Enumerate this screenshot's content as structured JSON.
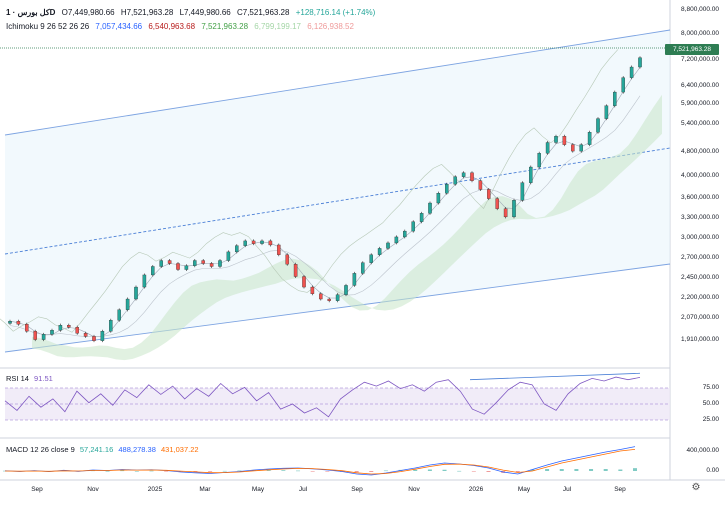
{
  "header": {
    "symbol": "کل بورس · 1D",
    "o": "O7,449,980.66",
    "h": "H7,521,963.28",
    "l": "L7,449,980.66",
    "c": "C7,521,963.28",
    "chg": "+128,716.14 (+1.74%)"
  },
  "ichimoku": {
    "label": "Ichimoku 9 26 52 26 26",
    "v1": "7,057,434.66",
    "v2": "6,540,963.68",
    "v3": "7,521,963.28",
    "v4": "6,799,199.17",
    "v5": "6,126,938.52"
  },
  "rsi": {
    "label": "RSI 14",
    "value": "91.51"
  },
  "macd": {
    "label": "MACD 12 26 close 9",
    "v1": "57,241.16",
    "v2": "488,278.38",
    "v3": "431,037.22"
  },
  "price_badge": "7,521,963.28",
  "colors": {
    "up": "#26a69a",
    "down": "#ef5350",
    "rsi": "#7e57c2",
    "channel": "#4a7fd6",
    "macd": "#2962ff",
    "signal": "#ff6d00"
  },
  "chart_data": {
    "type": "line",
    "title": "کل بورس · 1D",
    "x_ticks": [
      "Sep",
      "Nov",
      "2025",
      "Mar",
      "May",
      "Jul",
      "Sep",
      "Nov",
      "2026",
      "May",
      "Jul",
      "Sep"
    ],
    "price_axis_ticks": [
      "8,800,000.00",
      "8,000,000.00",
      "7,200,000.00",
      "6,400,000.00",
      "5,900,000.00",
      "5,400,000.00",
      "4,800,000.00",
      "4,000,000.00",
      "3,600,000.00",
      "3,300,000.00",
      "3,000,000.00",
      "2,700,000.00",
      "2,450,000.00",
      "2,200,000.00",
      "2,070,000.00",
      "1,910,000.00"
    ],
    "rsi_axis_ticks": [
      "75.00",
      "50.00",
      "25.00"
    ],
    "macd_axis_ticks": [
      "400,000.00",
      "0.00"
    ],
    "series": [
      {
        "name": "کل بورس",
        "values": [
          2180000,
          2150000,
          2080000,
          2000000,
          2050000,
          2090000,
          2140000,
          2120000,
          2060000,
          2030000,
          1990000,
          2080000,
          2190000,
          2300000,
          2420000,
          2560000,
          2710000,
          2820000,
          2900000,
          2860000,
          2780000,
          2830000,
          2900000,
          2860000,
          2820000,
          2900000,
          3020000,
          3110000,
          3180000,
          3140000,
          3180000,
          3120000,
          2980000,
          2850000,
          2690000,
          2560000,
          2480000,
          2420000,
          2400000,
          2470000,
          2580000,
          2730000,
          2870000,
          2980000,
          3070000,
          3150000,
          3240000,
          3330000,
          3480000,
          3620000,
          3800000,
          3980000,
          4150000,
          4300000,
          4380000,
          4220000,
          4050000,
          3880000,
          3700000,
          3560000,
          3850000,
          4180000,
          4500000,
          4800000,
          5050000,
          5200000,
          5000000,
          4850000,
          5000000,
          5300000,
          5650000,
          6000000,
          6400000,
          6850000,
          7200000,
          7521963
        ]
      }
    ],
    "rsi_values": [
      55,
      40,
      62,
      45,
      58,
      38,
      70,
      52,
      66,
      48,
      72,
      60,
      80,
      65,
      78,
      58,
      74,
      62,
      82,
      66,
      76,
      55,
      68,
      42,
      50,
      36,
      44,
      30,
      58,
      72,
      84,
      78,
      86,
      74,
      80,
      70,
      84,
      88,
      70,
      42,
      34,
      52,
      72,
      84,
      80,
      50,
      40,
      66,
      82,
      90,
      86,
      92,
      88,
      91.51
    ],
    "macd_values": [
      5,
      -10,
      8,
      -12,
      15,
      -5,
      20,
      10,
      30,
      18,
      25,
      10,
      -20,
      -35,
      -50,
      -30,
      -10,
      20,
      40,
      55,
      60,
      45,
      20,
      -10,
      -60,
      -80,
      -40,
      10,
      60,
      120,
      160,
      140,
      110,
      60,
      -20,
      -60,
      30,
      120,
      200,
      260,
      320,
      380,
      430,
      488
    ],
    "signal_values": [
      0,
      -4,
      0,
      -6,
      4,
      0,
      10,
      10,
      20,
      18,
      20,
      14,
      -2,
      -18,
      -34,
      -32,
      -20,
      4,
      24,
      40,
      52,
      48,
      30,
      6,
      -35,
      -60,
      -50,
      -12,
      36,
      90,
      135,
      138,
      120,
      80,
      18,
      -30,
      0,
      80,
      160,
      220,
      280,
      340,
      400,
      431
    ]
  }
}
